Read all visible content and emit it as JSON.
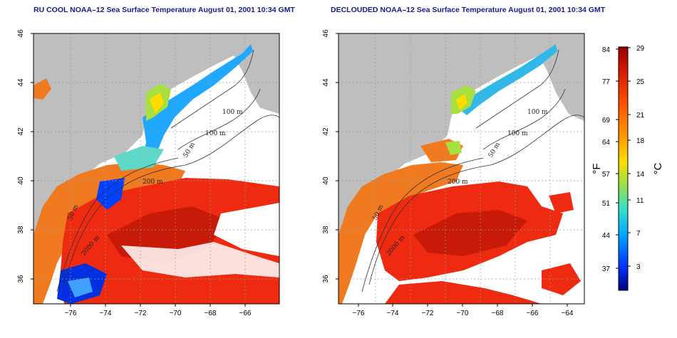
{
  "panels": [
    {
      "title": "RU COOL NOAA–12 Sea Surface Temperature August 01, 2001 10:34 GMT"
    },
    {
      "title": "DECLOUDED NOAA–12 Sea Surface Temperature August 01, 2001 10:34 GMT"
    }
  ],
  "axes": {
    "lon_ticks": [
      "−76",
      "−74",
      "−72",
      "−70",
      "−68",
      "−66",
      "−64"
    ],
    "lon_values": [
      -76,
      -74,
      -72,
      -70,
      -68,
      -66,
      -64
    ],
    "lat_ticks": [
      "36",
      "38",
      "40",
      "42",
      "44",
      "46"
    ],
    "lat_values": [
      36,
      38,
      40,
      42,
      44,
      46
    ],
    "lon_range": [
      -77,
      -63
    ],
    "lat_range": [
      35,
      46
    ]
  },
  "contours": {
    "labels": [
      "100 m",
      "100 m",
      "50 m",
      "200 m",
      "50 m",
      "2000 m"
    ]
  },
  "colorbar": {
    "fahrenheit_ticks": [
      "84",
      "77",
      "69",
      "64",
      "57",
      "51",
      "44",
      "37"
    ],
    "celsius_ticks": [
      "29",
      "25",
      "21",
      "18",
      "14",
      "11",
      "7",
      "3"
    ],
    "fahrenheit_unit": "°F",
    "celsius_unit": "°C",
    "colors": [
      "#000080",
      "#0033ff",
      "#00b7ff",
      "#40e0c0",
      "#a8e040",
      "#ffdc00",
      "#ff9a00",
      "#ff5a00",
      "#e82000",
      "#a00000"
    ]
  },
  "colors": {
    "land": "#bebebe",
    "warm": "#ee2a10",
    "deep_warm": "#c81a08",
    "shelf_orange": "#f07a20"
  }
}
